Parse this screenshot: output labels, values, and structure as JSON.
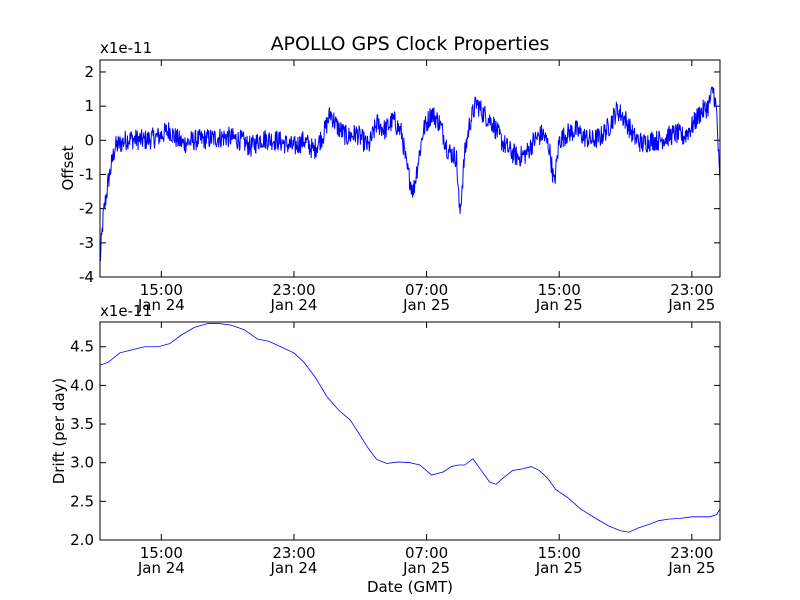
{
  "chart_data": [
    {
      "type": "line",
      "title": "APOLLO GPS Clock Properties",
      "ylabel": "Offset",
      "xlabel": "",
      "multiplier": "x1e-11",
      "ylim": [
        -4,
        2.35
      ],
      "yticks": [
        -4,
        -3,
        -2,
        -1,
        0,
        1,
        2
      ],
      "xlim_hours": [
        11.3,
        48.7
      ],
      "xticks": [
        {
          "hour": 15,
          "time": "15:00",
          "date": "Jan 24"
        },
        {
          "hour": 23,
          "time": "23:00",
          "date": "Jan 24"
        },
        {
          "hour": 31,
          "time": "07:00",
          "date": "Jan 25"
        },
        {
          "hour": 39,
          "time": "15:00",
          "date": "Jan 25"
        },
        {
          "hour": 47,
          "time": "23:00",
          "date": "Jan 25"
        }
      ],
      "color": "#0000ff",
      "grid": false,
      "series": [
        {
          "name": "",
          "noise": 0.45,
          "x": [
            11.3,
            11.5,
            11.8,
            12.2,
            13,
            14,
            14.8,
            15.5,
            15.8,
            16.3,
            17,
            18,
            19,
            19.8,
            20.4,
            21,
            22,
            23,
            23.6,
            24.2,
            24.8,
            25.2,
            25.6,
            26.2,
            26.8,
            27.5,
            28,
            28.5,
            29,
            29.5,
            29.8,
            30.2,
            30.8,
            31.3,
            31.8,
            32.3,
            32.8,
            33,
            33.3,
            33.6,
            34,
            34.4,
            35,
            35.5,
            36,
            36.5,
            37,
            37.5,
            38,
            38.4,
            38.7,
            39,
            39.5,
            40,
            40.5,
            41,
            41.5,
            42,
            42.5,
            43,
            43.5,
            44,
            44.5,
            45,
            45.5,
            46,
            46.5,
            47,
            47.5,
            48,
            48.3,
            48.5,
            48.7
          ],
          "values": [
            -3.6,
            -2.2,
            -1.2,
            -0.2,
            0.05,
            0,
            0.1,
            0.3,
            0.1,
            -0.1,
            0,
            0.05,
            0.1,
            0,
            -0.2,
            0.05,
            0,
            -0.2,
            0,
            -0.3,
            0.2,
            0.8,
            0.4,
            0.1,
            0.2,
            -0.2,
            0.5,
            0.3,
            0.6,
            0.2,
            -0.8,
            -1.5,
            0.3,
            0.8,
            0.5,
            -0.3,
            -0.5,
            -2.2,
            -0.4,
            0.5,
            1.1,
            0.8,
            0.5,
            0,
            -0.3,
            -0.5,
            -0.4,
            0,
            0.2,
            -0.2,
            -1.3,
            0,
            0.2,
            0.3,
            0.1,
            0,
            0.1,
            0.4,
            0.9,
            0.6,
            0.1,
            -0.1,
            0,
            0,
            0.1,
            0.2,
            0.1,
            0.4,
            0.8,
            1.0,
            1.5,
            0.8,
            -1.4
          ]
        }
      ]
    },
    {
      "type": "line",
      "title": "",
      "ylabel": "Drift (per day)",
      "xlabel": "Date (GMT)",
      "multiplier": "x1e-11",
      "ylim": [
        2.0,
        4.82
      ],
      "yticks": [
        2.0,
        2.5,
        3.0,
        3.5,
        4.0,
        4.5
      ],
      "ytick_labels": [
        "2.0",
        "2.5",
        "3.0",
        "3.5",
        "4.0",
        "4.5"
      ],
      "xlim_hours": [
        11.3,
        48.7
      ],
      "xticks": [
        {
          "hour": 15,
          "time": "15:00",
          "date": "Jan 24"
        },
        {
          "hour": 23,
          "time": "23:00",
          "date": "Jan 24"
        },
        {
          "hour": 31,
          "time": "07:00",
          "date": "Jan 25"
        },
        {
          "hour": 39,
          "time": "15:00",
          "date": "Jan 25"
        },
        {
          "hour": 47,
          "time": "23:00",
          "date": "Jan 25"
        }
      ],
      "color": "#0000ff",
      "grid": false,
      "series": [
        {
          "name": "",
          "x": [
            11.3,
            11.8,
            12.5,
            13.2,
            14,
            14.8,
            15.5,
            16.2,
            17,
            17.8,
            18.5,
            19.2,
            20,
            20.8,
            21.5,
            22.2,
            23,
            23.6,
            24.3,
            25,
            25.7,
            26.4,
            27,
            27.5,
            28,
            28.6,
            29.3,
            30,
            30.6,
            31.3,
            32,
            32.5,
            32.9,
            33.3,
            33.8,
            34.3,
            34.8,
            35.2,
            35.6,
            36.2,
            36.8,
            37.3,
            37.8,
            38.3,
            38.8,
            39.5,
            40.3,
            41.2,
            42,
            42.7,
            43.2,
            43.7,
            44.4,
            45,
            45.6,
            46.3,
            47,
            47.6,
            48.1,
            48.5,
            48.7
          ],
          "values": [
            4.26,
            4.3,
            4.42,
            4.46,
            4.5,
            4.5,
            4.54,
            4.65,
            4.75,
            4.8,
            4.8,
            4.78,
            4.72,
            4.6,
            4.57,
            4.5,
            4.42,
            4.3,
            4.1,
            3.85,
            3.68,
            3.55,
            3.35,
            3.18,
            3.04,
            2.99,
            3.01,
            3.0,
            2.97,
            2.84,
            2.88,
            2.95,
            2.97,
            2.97,
            3.05,
            2.9,
            2.75,
            2.72,
            2.8,
            2.9,
            2.92,
            2.95,
            2.9,
            2.8,
            2.65,
            2.55,
            2.4,
            2.28,
            2.18,
            2.12,
            2.1,
            2.15,
            2.2,
            2.25,
            2.27,
            2.28,
            2.3,
            2.3,
            2.3,
            2.33,
            2.4
          ]
        }
      ]
    }
  ]
}
